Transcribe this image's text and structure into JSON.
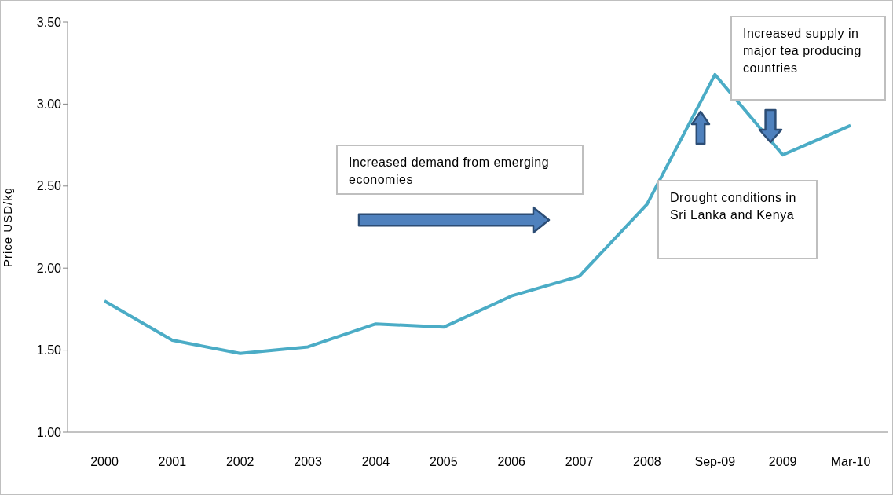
{
  "chart_data": {
    "type": "line",
    "ylabel": "Price USD/kg",
    "categories": [
      "2000",
      "2001",
      "2002",
      "2003",
      "2004",
      "2005",
      "2006",
      "2007",
      "2008",
      "Sep-09",
      "2009",
      "Mar-10"
    ],
    "series": [
      {
        "color": "#4bacc6",
        "values": [
          1.8,
          1.56,
          1.48,
          1.52,
          1.66,
          1.64,
          1.83,
          1.95,
          2.39,
          3.18,
          2.69,
          2.87
        ]
      }
    ],
    "ylim": [
      1,
      3.5
    ],
    "yticks": [
      {
        "value": 1,
        "label": "1.00"
      },
      {
        "value": 1.5,
        "label": "1.50"
      },
      {
        "value": 2,
        "label": "2.00"
      },
      {
        "value": 2.5,
        "label": "2.50"
      },
      {
        "value": 3,
        "label": "3.00"
      },
      {
        "value": 3.5,
        "label": "3.50"
      }
    ],
    "annotations": [
      "Increased demand from emerging economies",
      "Drought conditions in Sri Lanka and Kenya",
      "Increased supply in major tea producing countries"
    ]
  }
}
